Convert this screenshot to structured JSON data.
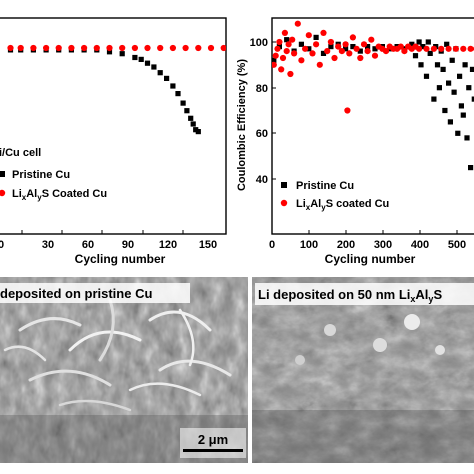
{
  "chart_data": [
    {
      "type": "scatter",
      "title": "",
      "xlabel": "Cycling number",
      "ylabel": "",
      "xlim": [
        0,
        175
      ],
      "x_ticks": [
        "30",
        "60",
        "90",
        "120",
        "150"
      ],
      "x_tick_partial": "0",
      "inset_text": "i/Cu cell",
      "legend": {
        "position": "bottom-left",
        "entries": [
          "Pristine Cu",
          "LixAlyS  Coated Cu"
        ]
      },
      "series": [
        {
          "name": "Pristine Cu",
          "color": "#000000",
          "marker": "square",
          "x": [
            2,
            10,
            20,
            30,
            40,
            50,
            60,
            70,
            80,
            90,
            100,
            105,
            110,
            115,
            120,
            125,
            130,
            134,
            138,
            141,
            144,
            146,
            148,
            150
          ],
          "y": [
            94,
            94,
            94,
            94,
            94,
            94,
            94,
            94,
            93,
            92,
            90,
            89,
            87,
            85,
            82,
            79,
            75,
            71,
            66,
            62,
            58,
            55,
            52,
            51
          ]
        },
        {
          "name": "LixAlyS  Coated Cu",
          "color": "#ff0000",
          "marker": "circle",
          "x": [
            2,
            10,
            20,
            30,
            40,
            50,
            60,
            70,
            80,
            90,
            100,
            110,
            120,
            130,
            140,
            150,
            160,
            170
          ],
          "y": [
            95,
            95,
            95,
            95,
            95,
            95,
            95,
            95,
            95,
            95,
            95,
            95,
            95,
            95,
            95,
            95,
            95,
            95
          ]
        }
      ]
    },
    {
      "type": "scatter",
      "title": "",
      "xlabel": "Cycling number",
      "ylabel": "Coulombic Efficiency (%)",
      "xlim": [
        0,
        560
      ],
      "ylim": [
        35,
        110
      ],
      "x_ticks": [
        0,
        100,
        200,
        300,
        400,
        500
      ],
      "y_ticks": [
        40,
        60,
        80,
        100
      ],
      "legend": {
        "position": "bottom-left",
        "entries": [
          "Pristine Cu",
          "LixAlyS coated Cu"
        ]
      },
      "series": [
        {
          "name": "Pristine Cu",
          "color": "#000000",
          "marker": "square",
          "x": [
            5,
            20,
            40,
            60,
            80,
            100,
            120,
            140,
            160,
            180,
            200,
            220,
            240,
            260,
            280,
            300,
            320,
            340,
            360,
            380,
            390,
            400,
            405,
            410,
            420,
            425,
            430,
            440,
            445,
            450,
            455,
            460,
            465,
            470,
            475,
            480,
            485,
            490,
            495,
            500,
            505,
            510,
            515,
            520,
            525,
            530,
            535,
            540,
            545,
            550
          ],
          "y": [
            92,
            98,
            101,
            96,
            99,
            97,
            102,
            95,
            98,
            99,
            97,
            98,
            96,
            98,
            97,
            98,
            97,
            98,
            97,
            99,
            94,
            100,
            90,
            98,
            85,
            100,
            95,
            75,
            98,
            90,
            80,
            96,
            88,
            70,
            99,
            82,
            65,
            92,
            78,
            97,
            60,
            85,
            72,
            68,
            90,
            58,
            80,
            45,
            88,
            75
          ]
        },
        {
          "name": "LixAlyS coated Cu",
          "color": "#ff0000",
          "marker": "circle",
          "x": [
            5,
            10,
            15,
            20,
            25,
            30,
            35,
            40,
            45,
            50,
            55,
            60,
            70,
            80,
            90,
            100,
            110,
            120,
            130,
            140,
            150,
            160,
            170,
            180,
            190,
            200,
            205,
            210,
            220,
            230,
            240,
            250,
            260,
            270,
            280,
            290,
            300,
            310,
            320,
            330,
            340,
            350,
            360,
            370,
            380,
            390,
            400,
            420,
            440,
            460,
            480,
            500,
            520,
            540,
            555
          ],
          "y": [
            90,
            94,
            97,
            100,
            88,
            93,
            104,
            96,
            99,
            86,
            101,
            95,
            108,
            92,
            97,
            103,
            95,
            99,
            90,
            104,
            96,
            100,
            93,
            98,
            96,
            99,
            70,
            95,
            102,
            97,
            93,
            99,
            96,
            101,
            94,
            98,
            97,
            96,
            98,
            97,
            97,
            98,
            96,
            98,
            97,
            98,
            97,
            97,
            97,
            97,
            97,
            97,
            97,
            97,
            97
          ]
        }
      ]
    }
  ],
  "micrographs": {
    "left_label": "deposited on pristine Cu",
    "right_label_prefix": "Li deposited on 50 nm Li",
    "right_label_sub_x": "x",
    "right_label_mid": "Al",
    "right_label_sub_y": "y",
    "right_label_suffix": "S",
    "scale_bar_label": "2 μm"
  },
  "legend_parts": {
    "left_pristine": "Pristine Cu",
    "left_coated_a": "Li",
    "left_coated_sub_x": "x",
    "left_coated_b": "Al",
    "left_coated_sub_y": "y",
    "left_coated_c": "S  Coated Cu",
    "right_pristine": "Pristine Cu",
    "right_coated_a": "Li",
    "right_coated_sub_x": "x",
    "right_coated_b": "Al",
    "right_coated_sub_y": "y",
    "right_coated_c": "S coated Cu"
  },
  "colors": {
    "pristine": "#000000",
    "coated": "#ff0000",
    "sem_base": "#8a8a8a"
  }
}
